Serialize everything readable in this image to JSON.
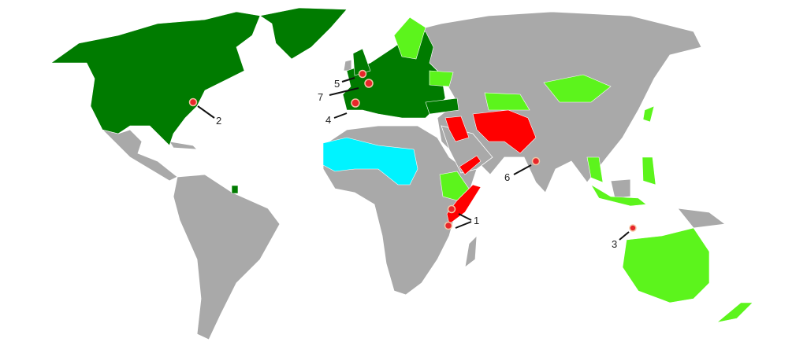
{
  "colors": {
    "land": "#a9a9a9",
    "dark_green": "#007b00",
    "light_green": "#5cf41c",
    "cyan": "#00f3ff",
    "red": "#ff0000",
    "marker": "#e8262a"
  },
  "regions": [
    {
      "name": "north-america",
      "category": "dark_green"
    },
    {
      "name": "greenland",
      "category": "dark_green"
    },
    {
      "name": "western-europe",
      "category": "dark_green"
    },
    {
      "name": "united-kingdom",
      "category": "dark_green"
    },
    {
      "name": "turkey",
      "category": "dark_green"
    },
    {
      "name": "french-guiana",
      "category": "dark_green"
    },
    {
      "name": "scandinavia",
      "category": "light_green"
    },
    {
      "name": "ukraine",
      "category": "light_green"
    },
    {
      "name": "central-asia",
      "category": "light_green"
    },
    {
      "name": "mongolia",
      "category": "light_green"
    },
    {
      "name": "ethiopia",
      "category": "light_green"
    },
    {
      "name": "thailand",
      "category": "light_green"
    },
    {
      "name": "indonesia",
      "category": "light_green"
    },
    {
      "name": "philippines",
      "category": "light_green"
    },
    {
      "name": "japan",
      "category": "light_green"
    },
    {
      "name": "australia",
      "category": "light_green"
    },
    {
      "name": "new-zealand",
      "category": "light_green"
    },
    {
      "name": "sahel",
      "category": "cyan"
    },
    {
      "name": "iraq-syria",
      "category": "red"
    },
    {
      "name": "iran-afghanistan-pakistan",
      "category": "red"
    },
    {
      "name": "yemen",
      "category": "red"
    },
    {
      "name": "somalia",
      "category": "red"
    }
  ],
  "markers": [
    {
      "label": "1",
      "place": "east-africa"
    },
    {
      "label": "2",
      "place": "new-york"
    },
    {
      "label": "3",
      "place": "bali"
    },
    {
      "label": "4",
      "place": "madrid"
    },
    {
      "label": "5",
      "place": "london"
    },
    {
      "label": "6",
      "place": "mumbai"
    },
    {
      "label": "7",
      "place": "paris"
    }
  ]
}
